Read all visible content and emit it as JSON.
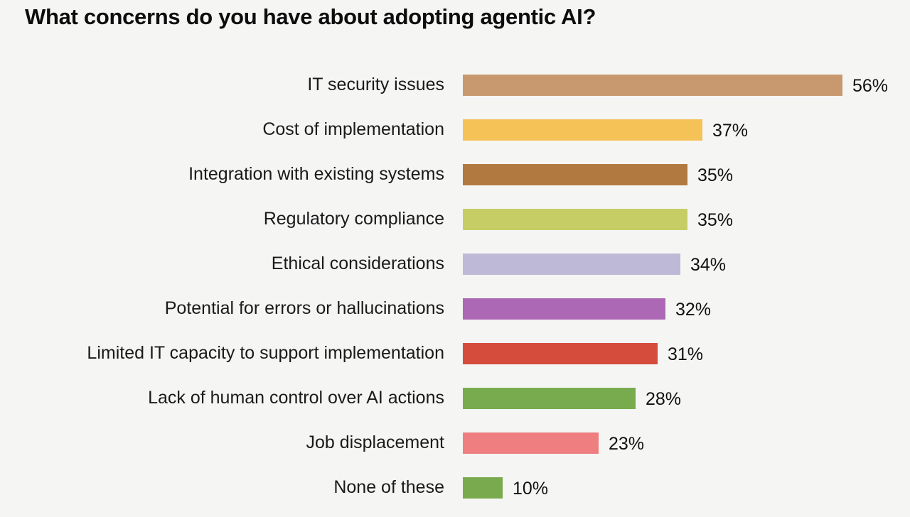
{
  "title": "What concerns do you have about adopting agentic AI?",
  "chart_data": {
    "type": "bar",
    "orientation": "horizontal",
    "title": "What concerns do you have about adopting agentic AI?",
    "xlabel": "",
    "ylabel": "",
    "value_suffix": "%",
    "xlim": [
      0,
      60
    ],
    "grid": false,
    "legend": "none",
    "data_labels": "outside-end",
    "background_color": "#f5f5f4",
    "categories": [
      "IT security issues",
      "Cost of implementation",
      "Integration with existing systems",
      "Regulatory compliance",
      "Ethical considerations",
      "Potential for errors or hallucinations",
      "Limited IT capacity to support implementation",
      "Lack of human control over AI actions",
      "Job displacement",
      "None of these"
    ],
    "values": [
      56,
      37,
      35,
      35,
      34,
      32,
      31,
      28,
      23,
      10
    ],
    "value_labels": [
      "56%",
      "37%",
      "35%",
      "35%",
      "34%",
      "32%",
      "31%",
      "28%",
      "23%",
      "10%"
    ],
    "bar_colors": [
      "#c8996e",
      "#f4c257",
      "#b1793f",
      "#c6cd64",
      "#bfb9d8",
      "#ac68b4",
      "#d54c3c",
      "#78ab4e",
      "#ee7e7f",
      "#79ab4e"
    ]
  }
}
